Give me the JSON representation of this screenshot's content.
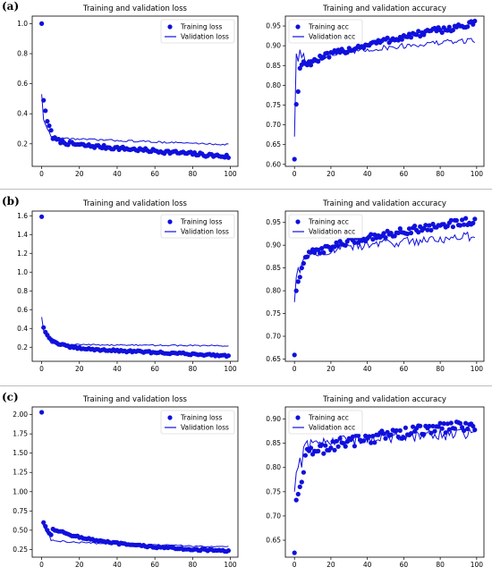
{
  "figure": {
    "panel_labels": [
      "(a)",
      "(b)",
      "(c)"
    ],
    "colors": {
      "series": "#1010dd",
      "axis": "#000000"
    }
  },
  "chart_data": [
    {
      "type": "line",
      "panel": "(a)",
      "title": "Training and validation loss",
      "ylim": [
        0.05,
        1.05
      ],
      "xlim": [
        -5,
        104
      ],
      "xticks": [
        0,
        20,
        40,
        60,
        80,
        100
      ],
      "yticks": [
        0.2,
        0.4,
        0.6,
        0.8,
        1.0
      ],
      "ytick_decimals": 1,
      "legend": "upper right",
      "series": [
        {
          "name": "Training loss",
          "style": "dots",
          "start": 1.0,
          "mid": 0.21,
          "end": 0.115,
          "tau": 5,
          "noise": 0.012,
          "firsts": [
            1.0,
            0.49,
            0.42,
            0.35,
            0.32,
            0.29
          ]
        },
        {
          "name": "Validation loss",
          "style": "line",
          "start": 0.53,
          "mid": 0.24,
          "end": 0.195,
          "tau": 4,
          "noise": 0.006,
          "firsts": [
            0.53,
            0.36,
            0.33,
            0.3,
            0.28
          ]
        }
      ]
    },
    {
      "type": "line",
      "panel": "(a)",
      "title": "Training and validation accuracy",
      "ylim": [
        0.595,
        0.975
      ],
      "xlim": [
        -5,
        104
      ],
      "xticks": [
        0,
        20,
        40,
        60,
        80,
        100
      ],
      "yticks": [
        0.6,
        0.65,
        0.7,
        0.75,
        0.8,
        0.85,
        0.9,
        0.95
      ],
      "ytick_decimals": 2,
      "legend": "upper left",
      "series": [
        {
          "name": "Training acc",
          "style": "dots",
          "start": 0.61,
          "mid": 0.88,
          "end": 0.956,
          "tau": 25,
          "noise": 0.008,
          "firsts": [
            0.613,
            0.752,
            0.784,
            0.843,
            0.852,
            0.86,
            0.855
          ]
        },
        {
          "name": "Validation acc",
          "style": "line",
          "start": 0.67,
          "mid": 0.88,
          "end": 0.915,
          "tau": 20,
          "noise": 0.007,
          "firsts": [
            0.67,
            0.88,
            0.86,
            0.89,
            0.87,
            0.88
          ]
        }
      ]
    },
    {
      "type": "line",
      "panel": "(b)",
      "title": "Training and validation loss",
      "ylim": [
        0.05,
        1.65
      ],
      "xlim": [
        -5,
        104
      ],
      "xticks": [
        0,
        20,
        40,
        60,
        80,
        100
      ],
      "yticks": [
        0.2,
        0.4,
        0.6,
        0.8,
        1.0,
        1.2,
        1.4,
        1.6
      ],
      "ytick_decimals": 1,
      "legend": "upper right",
      "series": [
        {
          "name": "Training loss",
          "style": "dots",
          "start": 1.59,
          "mid": 0.2,
          "end": 0.11,
          "tau": 6,
          "noise": 0.01,
          "firsts": [
            1.59,
            0.41,
            0.36,
            0.33,
            0.3,
            0.28
          ]
        },
        {
          "name": "Validation loss",
          "style": "line",
          "start": 0.52,
          "mid": 0.23,
          "end": 0.215,
          "tau": 5,
          "noise": 0.007,
          "firsts": [
            0.52,
            0.38,
            0.34,
            0.31,
            0.29
          ]
        }
      ]
    },
    {
      "type": "line",
      "panel": "(b)",
      "title": "Training and validation accuracy",
      "ylim": [
        0.645,
        0.975
      ],
      "xlim": [
        -5,
        104
      ],
      "xticks": [
        0,
        20,
        40,
        60,
        80,
        100
      ],
      "yticks": [
        0.65,
        0.7,
        0.75,
        0.8,
        0.85,
        0.9,
        0.95
      ],
      "ytick_decimals": 2,
      "legend": "upper left",
      "series": [
        {
          "name": "Training acc",
          "style": "dots",
          "start": 0.66,
          "mid": 0.9,
          "end": 0.955,
          "tau": 22,
          "noise": 0.008,
          "firsts": [
            0.659,
            0.8,
            0.82,
            0.83,
            0.85,
            0.86
          ]
        },
        {
          "name": "Validation acc",
          "style": "line",
          "start": 0.775,
          "mid": 0.89,
          "end": 0.92,
          "tau": 18,
          "noise": 0.01,
          "firsts": [
            0.775,
            0.83,
            0.85,
            0.84,
            0.86,
            0.87
          ]
        }
      ]
    },
    {
      "type": "line",
      "panel": "(c)",
      "title": "Training and validation loss",
      "ylim": [
        0.15,
        2.1
      ],
      "xlim": [
        -5,
        104
      ],
      "xticks": [
        0,
        20,
        40,
        60,
        80,
        100
      ],
      "yticks": [
        0.25,
        0.5,
        0.75,
        1.0,
        1.25,
        1.5,
        1.75,
        2.0
      ],
      "ytick_decimals": 2,
      "legend": "upper right",
      "series": [
        {
          "name": "Training loss",
          "style": "dots",
          "start": 2.03,
          "mid": 0.33,
          "end": 0.225,
          "tau": 22,
          "noise": 0.012,
          "firsts": [
            2.03,
            0.6,
            0.55,
            0.5,
            0.46,
            0.44
          ]
        },
        {
          "name": "Validation loss",
          "style": "line",
          "start": 0.6,
          "mid": 0.34,
          "end": 0.285,
          "tau": 18,
          "noise": 0.01,
          "firsts": [
            0.6,
            0.56,
            0.5,
            0.46,
            0.44
          ]
        }
      ]
    },
    {
      "type": "line",
      "panel": "(c)",
      "title": "Training and validation accuracy",
      "ylim": [
        0.615,
        0.925
      ],
      "xlim": [
        -5,
        104
      ],
      "xticks": [
        0,
        20,
        40,
        60,
        80,
        100
      ],
      "yticks": [
        0.65,
        0.7,
        0.75,
        0.8,
        0.85,
        0.9
      ],
      "ytick_decimals": 2,
      "legend": "upper left",
      "series": [
        {
          "name": "Training acc",
          "style": "dots",
          "start": 0.625,
          "mid": 0.85,
          "end": 0.89,
          "tau": 22,
          "noise": 0.012,
          "firsts": [
            0.624,
            0.733,
            0.745,
            0.76,
            0.77,
            0.79
          ]
        },
        {
          "name": "Validation acc",
          "style": "line",
          "start": 0.75,
          "mid": 0.855,
          "end": 0.87,
          "tau": 20,
          "noise": 0.012,
          "firsts": [
            0.75,
            0.79,
            0.8,
            0.82,
            0.8
          ]
        }
      ]
    }
  ]
}
